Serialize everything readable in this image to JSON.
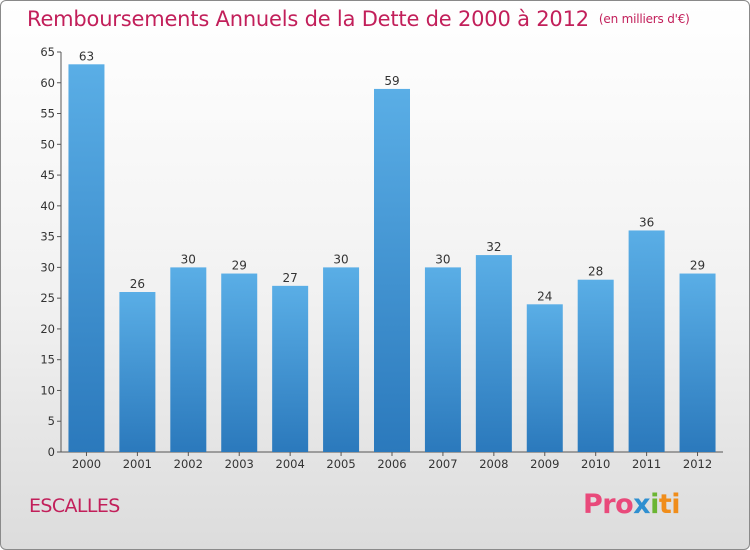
{
  "title": "Remboursements Annuels de la Dette de 2000 à 2012",
  "unit": "(en milliers d'€)",
  "commune": "ESCALLES",
  "logo": {
    "part1": "Pro",
    "part2": "x",
    "part3": "i",
    "part4": "ti"
  },
  "colors": {
    "bar_top": "#5aaee6",
    "bar_bottom": "#2b79bc",
    "title": "#c21f5a"
  },
  "chart_data": {
    "type": "bar",
    "title": "Remboursements Annuels de la Dette de 2000 à 2012",
    "categories": [
      "2000",
      "2001",
      "2002",
      "2003",
      "2004",
      "2005",
      "2006",
      "2007",
      "2008",
      "2009",
      "2010",
      "2011",
      "2012"
    ],
    "values": [
      63,
      26,
      30,
      29,
      27,
      30,
      59,
      30,
      32,
      24,
      28,
      36,
      29
    ],
    "ylim": [
      0,
      65
    ],
    "yticks": [
      0,
      5,
      10,
      15,
      20,
      25,
      30,
      35,
      40,
      45,
      50,
      55,
      60,
      65
    ],
    "xlabel": "",
    "ylabel": "",
    "grid": false,
    "data_labels": true
  }
}
